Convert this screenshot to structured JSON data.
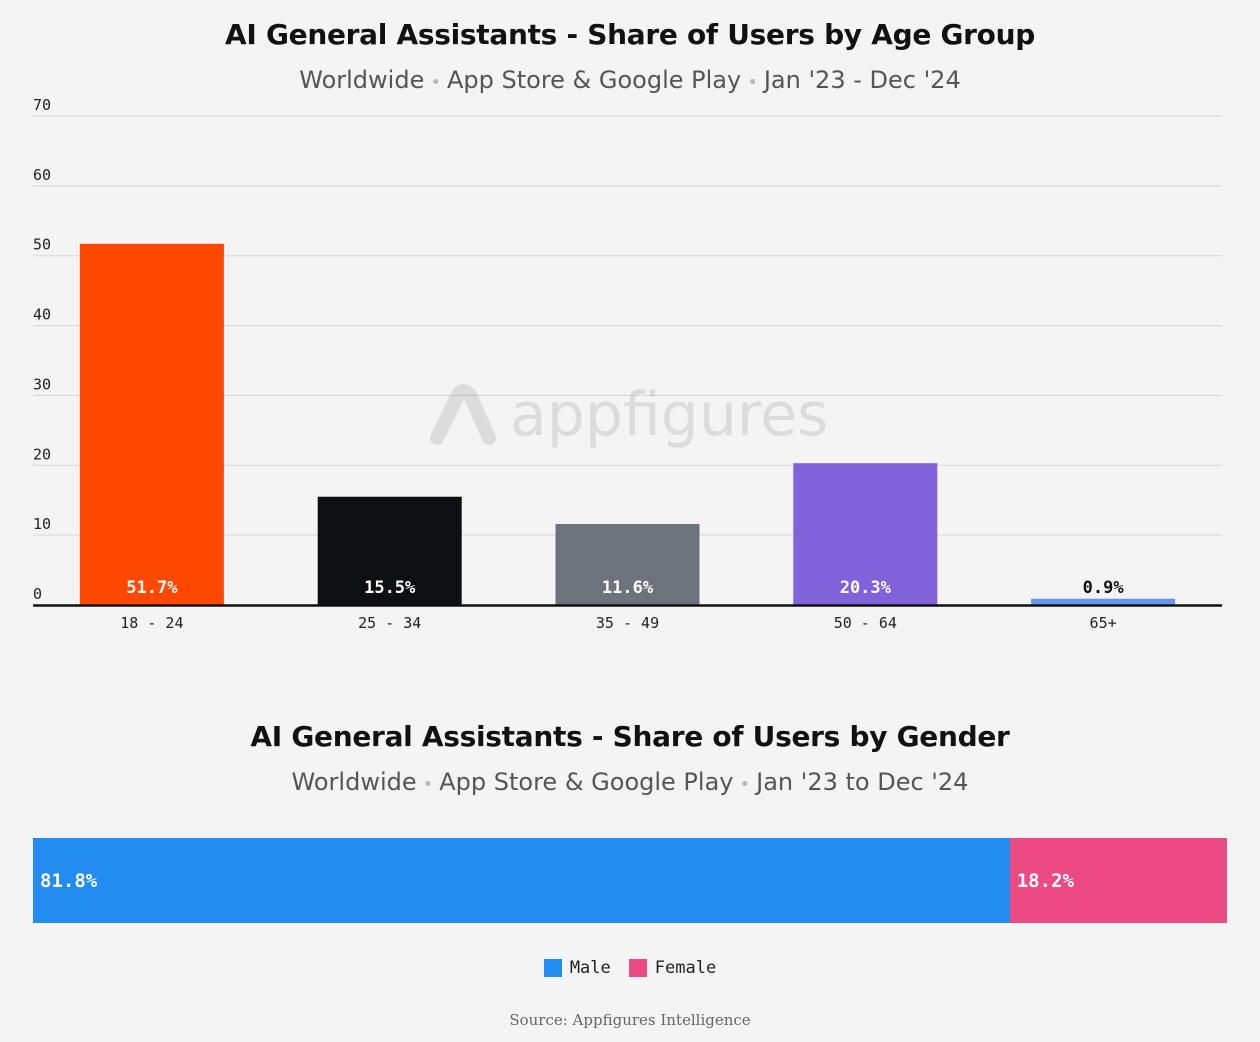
{
  "age_chart": {
    "title": "AI General Assistants - Share of Users by Age Group",
    "subtitle_parts": [
      "Worldwide",
      "App Store & Google Play",
      "Jan '23 - Dec '24"
    ],
    "watermark": "appfigures"
  },
  "gender_chart": {
    "title": "AI General Assistants - Share of Users by Gender",
    "subtitle_parts": [
      "Worldwide",
      "App Store & Google Play",
      "Jan '23 to Dec '24"
    ]
  },
  "source": "Source: Appfigures Intelligence",
  "chart_data": [
    {
      "type": "bar",
      "title": "AI General Assistants - Share of Users by Age Group",
      "subtitle": "Worldwide · App Store & Google Play · Jan '23 - Dec '24",
      "categories": [
        "18 - 24",
        "25 - 34",
        "35 - 49",
        "50 - 64",
        "65+"
      ],
      "values": [
        51.7,
        15.5,
        11.6,
        20.3,
        0.9
      ],
      "data_labels": [
        "51.7%",
        "15.5%",
        "11.6%",
        "20.3%",
        "0.9%"
      ],
      "colors": [
        "#ff4800",
        "#0e0f11",
        "#6c737c",
        "#8262da",
        "#6895ee"
      ],
      "label_colors": [
        "#ffffff",
        "#ffffff",
        "#ffffff",
        "#ffffff",
        "#111111"
      ],
      "ylim": [
        0,
        70
      ],
      "yticks": [
        0,
        10,
        20,
        30,
        40,
        50,
        60,
        70
      ],
      "grid": true
    },
    {
      "type": "bar",
      "orientation": "horizontal-stacked",
      "title": "AI General Assistants - Share of Users by Gender",
      "subtitle": "Worldwide · App Store & Google Play · Jan '23 to Dec '24",
      "series": [
        {
          "name": "Male",
          "value": 81.8,
          "label": "81.8%",
          "color": "#228cf1"
        },
        {
          "name": "Female",
          "value": 18.2,
          "label": "18.2%",
          "color": "#eb4a82"
        }
      ],
      "legend": "bottom-center"
    }
  ]
}
